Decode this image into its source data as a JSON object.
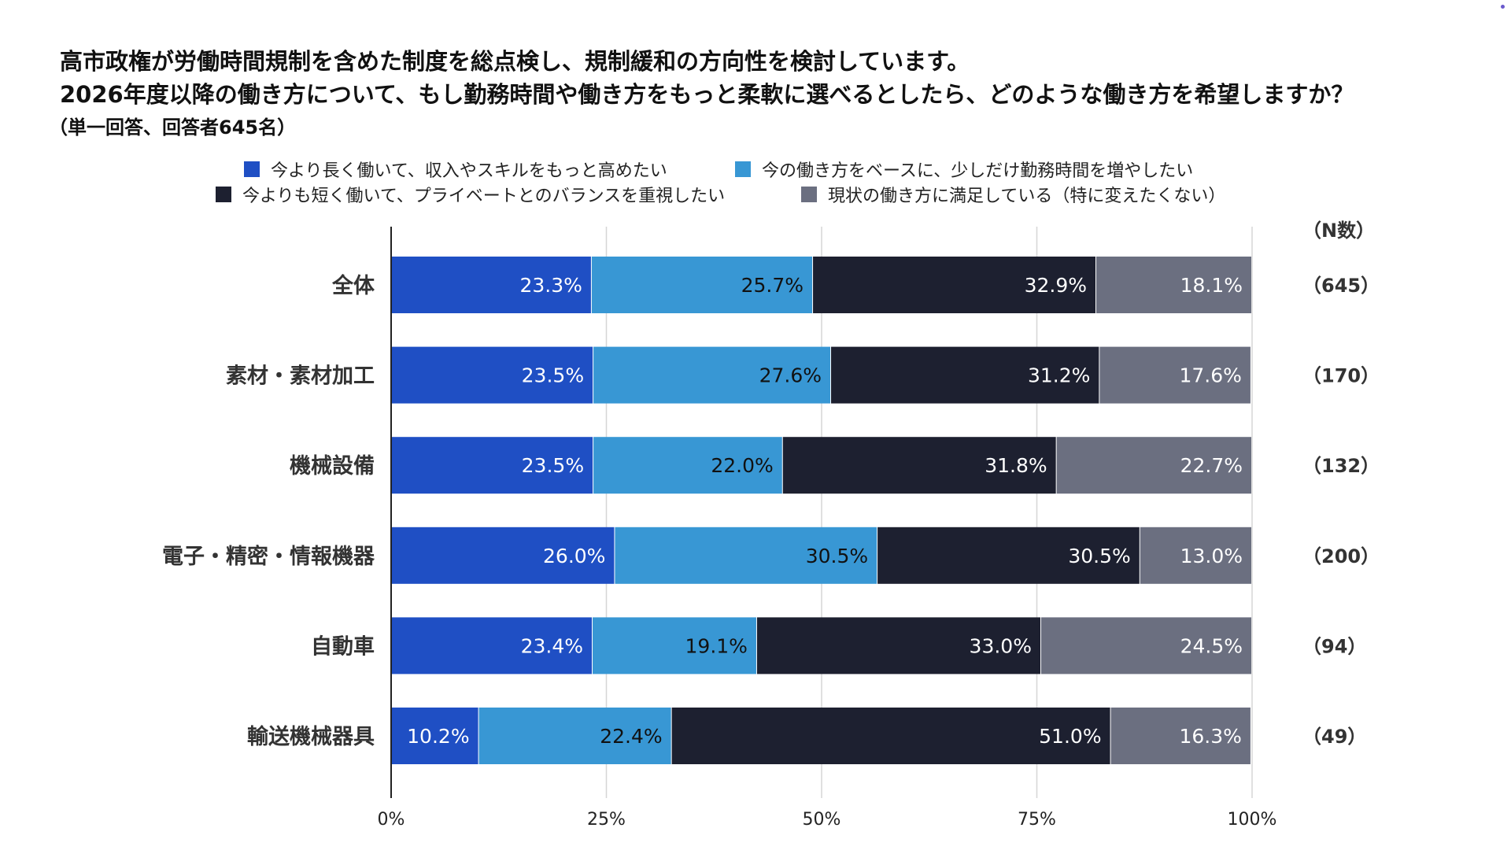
{
  "chart_data": {
    "type": "bar",
    "orientation": "horizontal-stacked-100",
    "title": [
      "高市政権が労働時間規制を含めた制度を総点検し、規制緩和の方向性を検討しています。",
      "2026年度以降の働き方について、もし勤務時間や働き方をもっと柔軟に選べるとしたら、どのような働き方を希望しますか？"
    ],
    "subtitle": "（単一回答、回答者645名）",
    "categories": [
      "全体",
      "素材・素材加工",
      "機械設備",
      "電子・精密・情報機器",
      "自動車",
      "輸送機械器具"
    ],
    "n_header": "（N数）",
    "n_labels": [
      "（645）",
      "（170）",
      "（132）",
      "（200）",
      "（94）",
      "（49）"
    ],
    "series": [
      {
        "name": "今より長く働いて、収入やスキルをもっと高めたい",
        "color": "#1f4fc4",
        "label_color": "#ffffff",
        "values": [
          23.3,
          23.5,
          23.5,
          26.0,
          23.4,
          10.2
        ],
        "labels": [
          "23.3%",
          "23.5%",
          "23.5%",
          "26.0%",
          "23.4%",
          "10.2%"
        ]
      },
      {
        "name": "今の働き方をベースに、少しだけ勤務時間を増やしたい",
        "color": "#3897d4",
        "label_color": "#111111",
        "values": [
          25.7,
          27.6,
          22.0,
          30.5,
          19.1,
          22.4
        ],
        "labels": [
          "25.7%",
          "27.6%",
          "22.0%",
          "30.5%",
          "19.1%",
          "22.4%"
        ]
      },
      {
        "name": "今よりも短く働いて、プライベートとのバランスを重視したい",
        "color": "#1d2030",
        "label_color": "#ffffff",
        "values": [
          32.9,
          31.2,
          31.8,
          30.5,
          33.0,
          51.0
        ],
        "labels": [
          "32.9%",
          "31.2%",
          "31.8%",
          "30.5%",
          "33.0%",
          "51.0%"
        ]
      },
      {
        "name": "現状の働き方に満足している（特に変えたくない）",
        "color": "#6b6f80",
        "label_color": "#ffffff",
        "values": [
          18.1,
          17.6,
          22.7,
          13.0,
          24.5,
          16.3
        ],
        "labels": [
          "18.1%",
          "17.6%",
          "22.7%",
          "13.0%",
          "24.5%",
          "16.3%"
        ]
      }
    ],
    "xlim": [
      0,
      100
    ],
    "xticks": [
      0,
      25,
      50,
      75,
      100
    ],
    "xtick_labels": [
      "0%",
      "25%",
      "50%",
      "75%",
      "100%"
    ],
    "grid": true,
    "legend_position": "top"
  }
}
